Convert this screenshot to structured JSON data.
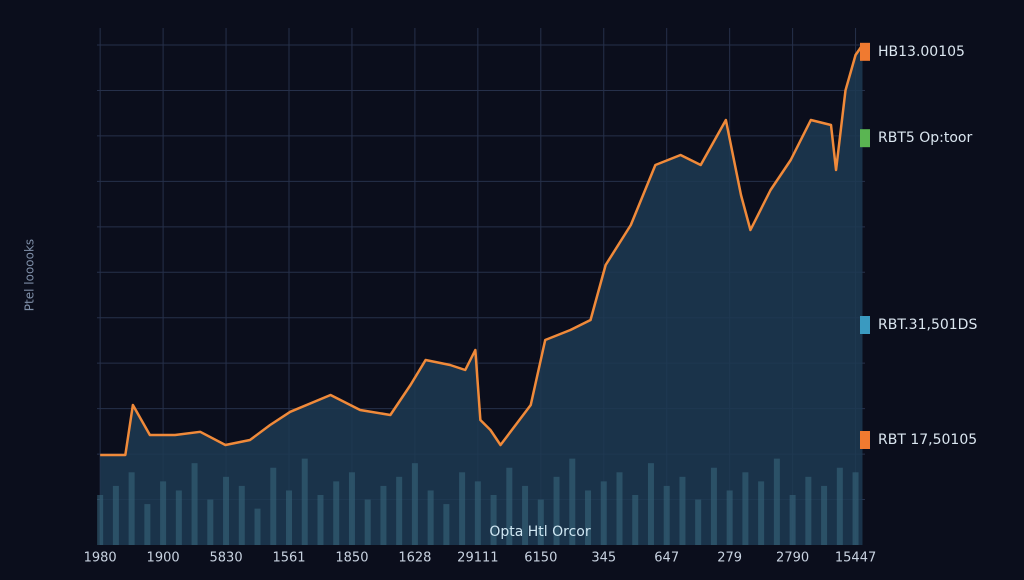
{
  "chart_data": {
    "type": "line",
    "y_axis_label": "Ptel looooks",
    "caption": "Opta Htl Orcor",
    "xlim": [
      -0.05,
      12.15
    ],
    "xticks": [
      {
        "value": 0,
        "label": "1980"
      },
      {
        "value": 1,
        "label": "1900"
      },
      {
        "value": 2,
        "label": "5830"
      },
      {
        "value": 3,
        "label": "1561"
      },
      {
        "value": 4,
        "label": "1850"
      },
      {
        "value": 5,
        "label": "1628"
      },
      {
        "value": 6,
        "label": "29111"
      },
      {
        "value": 7,
        "label": "6150"
      },
      {
        "value": 8,
        "label": "345"
      },
      {
        "value": 9,
        "label": "647"
      },
      {
        "value": 10,
        "label": "279"
      },
      {
        "value": 11,
        "label": "2790"
      },
      {
        "value": 12,
        "label": "15447"
      }
    ],
    "ylim": [
      0,
      11
    ],
    "yticks": [
      1,
      2,
      3,
      4,
      5,
      6,
      7,
      8,
      9,
      10,
      11
    ],
    "grid": true,
    "price": {
      "color": "#f08a3a",
      "fill": "#1d3a52",
      "x": [
        0,
        0.4,
        0.52,
        0.79,
        1.19,
        1.59,
        1.99,
        2.38,
        2.7,
        3.02,
        3.66,
        4.13,
        4.61,
        4.93,
        5.17,
        5.56,
        5.8,
        5.96,
        6.04,
        6.2,
        6.36,
        6.6,
        6.84,
        7.07,
        7.47,
        7.79,
        8.03,
        8.43,
        8.82,
        9.22,
        9.54,
        9.94,
        10.18,
        10.33,
        10.65,
        10.97,
        11.29,
        11.61,
        11.69,
        11.84,
        12.0,
        12.11
      ],
      "values": [
        1.98,
        1.98,
        3.08,
        2.42,
        2.42,
        2.49,
        2.2,
        2.31,
        2.64,
        2.93,
        3.3,
        2.97,
        2.86,
        3.52,
        4.07,
        3.96,
        3.85,
        4.29,
        2.75,
        2.53,
        2.2,
        2.64,
        3.08,
        4.51,
        4.73,
        4.95,
        6.16,
        7.04,
        8.36,
        8.58,
        8.36,
        9.35,
        7.7,
        6.93,
        7.81,
        8.47,
        9.35,
        9.24,
        8.25,
        10.0,
        10.78,
        11
      ]
    },
    "volume": {
      "color": "#3a6a80",
      "x": [
        0,
        0.25,
        0.5,
        0.75,
        1,
        1.25,
        1.5,
        1.75,
        2,
        2.25,
        2.5,
        2.75,
        3,
        3.25,
        3.5,
        3.75,
        4,
        4.25,
        4.5,
        4.75,
        5,
        5.25,
        5.5,
        5.75,
        6,
        6.25,
        6.5,
        6.75,
        7,
        7.25,
        7.5,
        7.75,
        8,
        8.25,
        8.5,
        8.75,
        9,
        9.25,
        9.5,
        9.75,
        10,
        10.25,
        10.5,
        10.75,
        11,
        11.25,
        11.5,
        11.75,
        12
      ],
      "values": [
        1.1,
        1.3,
        1.6,
        0.9,
        1.4,
        1.2,
        1.8,
        1.0,
        1.5,
        1.3,
        0.8,
        1.7,
        1.2,
        1.9,
        1.1,
        1.4,
        1.6,
        1.0,
        1.3,
        1.5,
        1.8,
        1.2,
        0.9,
        1.6,
        1.4,
        1.1,
        1.7,
        1.3,
        1.0,
        1.5,
        1.9,
        1.2,
        1.4,
        1.6,
        1.1,
        1.8,
        1.3,
        1.5,
        1.0,
        1.7,
        1.2,
        1.6,
        1.4,
        1.9,
        1.1,
        1.5,
        1.3,
        1.7,
        1.6
      ]
    },
    "annotations": [
      {
        "text": "HB13.00105",
        "value": 10.85,
        "color": "#f07a30"
      },
      {
        "text": "RBT5 Op:toor",
        "value": 8.95,
        "color": "#5ab552"
      },
      {
        "text": "RBT.31,501DS",
        "value": 4.84,
        "color": "#3a9ac0"
      },
      {
        "text": "RBT 17,50105",
        "value": 2.31,
        "color": "#f07a30"
      }
    ]
  }
}
